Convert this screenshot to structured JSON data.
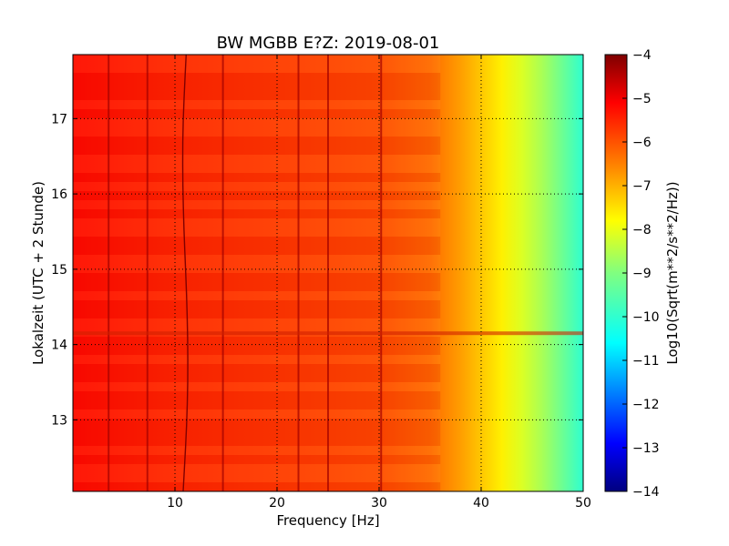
{
  "chart_data": {
    "type": "heatmap",
    "title": "BW MGBB E?Z: 2019-08-01",
    "xlabel": "Frequency [Hz]",
    "ylabel": "Lokalzeit (UTC + 2 Stunde)",
    "colorbar_label": "Log10(Sqrt(m**2/s**2/Hz))",
    "xlim": [
      0,
      50
    ],
    "ylim": [
      17.85,
      12.05
    ],
    "y_inverted": true,
    "x_ticks": [
      10,
      20,
      30,
      40,
      50
    ],
    "x_tick_labels": [
      "10",
      "20",
      "30",
      "40",
      "50"
    ],
    "y_ticks": [
      13,
      14,
      15,
      16,
      17
    ],
    "y_tick_labels": [
      "13",
      "14",
      "15",
      "16",
      "17"
    ],
    "colorbar_range": [
      -14,
      -4
    ],
    "colorbar_ticks": [
      -4,
      -5,
      -6,
      -7,
      -8,
      -9,
      -10,
      -11,
      -12,
      -13,
      -14
    ],
    "colorbar_tick_labels": [
      "−4",
      "−5",
      "−6",
      "−7",
      "−8",
      "−9",
      "−10",
      "−11",
      "−12",
      "−13",
      "−14"
    ],
    "colormap": "jet",
    "grid": "dotted",
    "spectrum_profile": [
      {
        "freq": 0,
        "value": -5.3
      },
      {
        "freq": 10,
        "value": -5.6
      },
      {
        "freq": 20,
        "value": -5.8
      },
      {
        "freq": 30,
        "value": -6.0
      },
      {
        "freq": 35,
        "value": -6.3
      },
      {
        "freq": 38,
        "value": -6.8
      },
      {
        "freq": 40,
        "value": -7.2
      },
      {
        "freq": 42,
        "value": -7.6
      },
      {
        "freq": 44,
        "value": -8.1
      },
      {
        "freq": 46,
        "value": -8.6
      },
      {
        "freq": 48,
        "value": -9.2
      },
      {
        "freq": 50,
        "value": -9.8
      }
    ],
    "vertical_lines_hz": [
      3.5,
      7.3,
      14.7,
      22.1,
      25.0,
      30.2
    ],
    "horizontal_bands_hours": [
      14.15
    ],
    "drift_line": {
      "start": [
        10.8,
        12.05
      ],
      "end": [
        11.2,
        17.85
      ]
    }
  }
}
